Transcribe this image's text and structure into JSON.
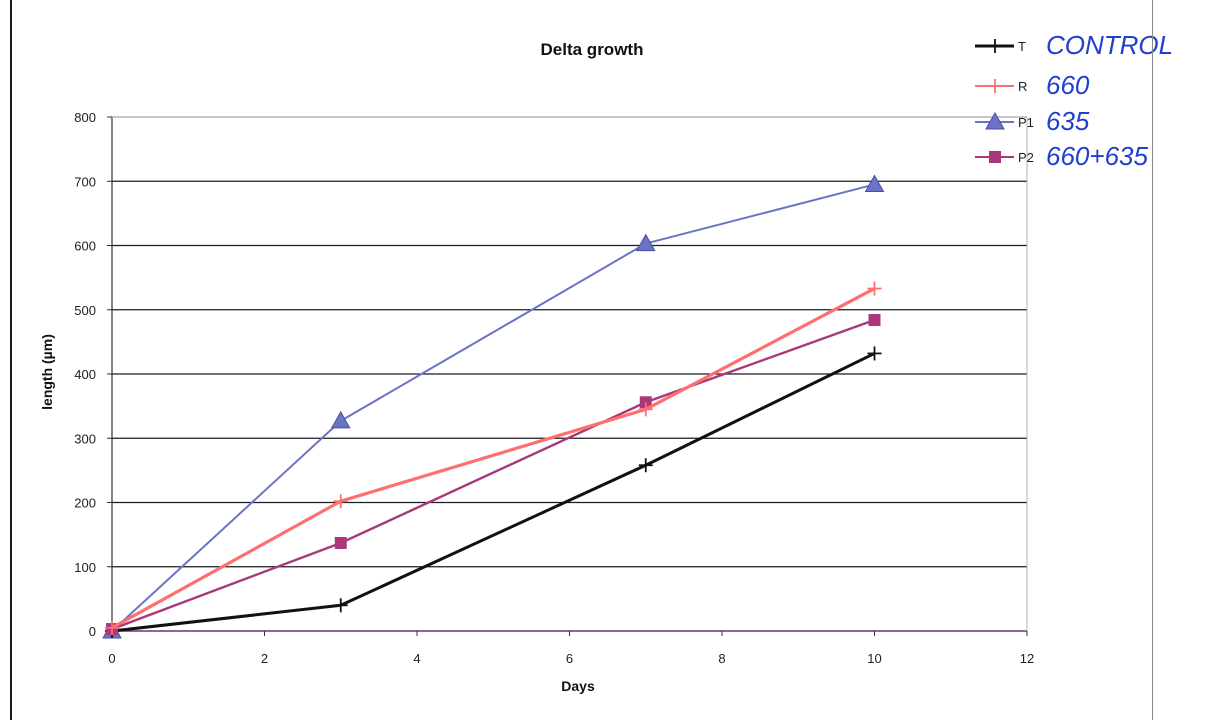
{
  "chart_data": {
    "type": "line",
    "title": "Delta growth",
    "xlabel": "Days",
    "ylabel": "length (µm)",
    "xlim": [
      0,
      12
    ],
    "ylim": [
      0,
      800
    ],
    "x_ticks": [
      0,
      2,
      4,
      6,
      8,
      10,
      12
    ],
    "y_ticks": [
      0,
      100,
      200,
      300,
      400,
      500,
      600,
      700,
      800
    ],
    "grid": "horizontal",
    "legend_position": "top-right",
    "series": [
      {
        "name": "T",
        "annotation": "CONTROL",
        "color": "#111111",
        "marker": "plus",
        "x": [
          0,
          3,
          7,
          10
        ],
        "y": [
          0,
          40,
          258,
          432
        ]
      },
      {
        "name": "R",
        "annotation": "660",
        "color": "#ff6f6f",
        "marker": "plus",
        "x": [
          0,
          3,
          7,
          10
        ],
        "y": [
          5,
          202,
          345,
          533
        ]
      },
      {
        "name": "P1",
        "annotation": "635",
        "color": "#6a74c6",
        "marker": "triangle",
        "x": [
          0,
          3,
          7,
          10
        ],
        "y": [
          0,
          327,
          603,
          695
        ]
      },
      {
        "name": "P2",
        "annotation": "660+635",
        "color": "#a8387a",
        "marker": "square",
        "x": [
          0,
          3,
          7,
          10
        ],
        "y": [
          3,
          137,
          356,
          484
        ]
      }
    ]
  }
}
